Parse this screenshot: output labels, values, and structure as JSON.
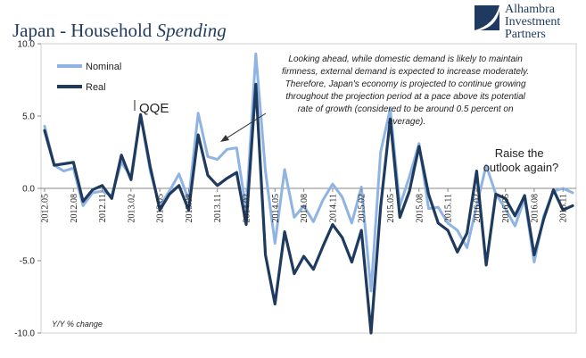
{
  "header": {
    "title_main": "Japan - Household",
    "title_italic": "Spending"
  },
  "logo": {
    "line1": "Alhambra",
    "line2": "Investment",
    "line3": "Partners",
    "color": "#1f3a5f"
  },
  "chart_data": {
    "type": "line",
    "title": "Japan - Household Spending",
    "ylabel": "Y/Y % change",
    "ylim": [
      -10,
      10
    ],
    "yticks": [
      10,
      5,
      0,
      -5,
      -10
    ],
    "ytick_labels": [
      "10.0",
      "5.0",
      "0.0",
      "-5.0",
      "-10.0"
    ],
    "grid": false,
    "legend_position": "top-left",
    "x": [
      "2012.05",
      "2012.06",
      "2012.07",
      "2012.08",
      "2012.09",
      "2012.10",
      "2012.11",
      "2012.12",
      "2013.01",
      "2013.02",
      "2013.03",
      "2013.04",
      "2013.05",
      "2013.06",
      "2013.07",
      "2013.08",
      "2013.09",
      "2013.10",
      "2013.11",
      "2013.12",
      "2014.01",
      "2014.02",
      "2014.03",
      "2014.04",
      "2014.05",
      "2014.06",
      "2014.07",
      "2014.08",
      "2014.09",
      "2014.10",
      "2014.11",
      "2014.12",
      "2015.01",
      "2015.02",
      "2015.03",
      "2015.04",
      "2015.05",
      "2015.06",
      "2015.07",
      "2015.08",
      "2015.09",
      "2015.10",
      "2015.11",
      "2015.12",
      "2016.01",
      "2016.02",
      "2016.03",
      "2016.04",
      "2016.05",
      "2016.06",
      "2016.07",
      "2016.08",
      "2016.09",
      "2016.10",
      "2016.11",
      "2016.12"
    ],
    "xtick_labels": [
      "2012.05",
      "2012.08",
      "2012.11",
      "2013.02",
      "2013.05",
      "2013.08",
      "2013.11",
      "2014.02",
      "2014.05",
      "2014.08",
      "2014.11",
      "2015.02",
      "2015.05",
      "2015.08",
      "2015.11",
      "2016.02",
      "2016.05",
      "2016.08",
      "2016.11"
    ],
    "series": [
      {
        "name": "Nominal",
        "color": "#8fb4e3",
        "values": [
          4.3,
          1.6,
          1.2,
          1.4,
          -1.2,
          -0.3,
          -0.2,
          -0.5,
          1.8,
          0.8,
          5.1,
          1.2,
          -1.2,
          -0.2,
          1.0,
          -0.8,
          5.2,
          2.2,
          2.0,
          2.7,
          2.8,
          -1.5,
          9.3,
          1.2,
          -3.8,
          1.3,
          -2.0,
          -1.2,
          -2.3,
          -0.8,
          0.3,
          -0.6,
          -2.4,
          0.1,
          -7.1,
          2.5,
          5.5,
          -1.2,
          0.8,
          3.1,
          -1.4,
          -1.3,
          -2.4,
          -2.9,
          -4.1,
          -1.2,
          1.6,
          -0.4,
          -1.4,
          -2.6,
          -0.7,
          -5.1,
          -1.9,
          -0.2,
          0.0,
          -0.3
        ]
      },
      {
        "name": "Real",
        "color": "#1f3a5f",
        "values": [
          4.0,
          1.6,
          1.7,
          1.8,
          -0.9,
          -0.1,
          0.2,
          -0.7,
          2.3,
          0.6,
          5.1,
          1.5,
          -1.5,
          -0.4,
          0.2,
          -1.5,
          3.7,
          0.9,
          0.2,
          0.7,
          1.1,
          -2.5,
          7.2,
          -4.6,
          -8.0,
          -3.0,
          -5.9,
          -4.7,
          -5.6,
          -4.0,
          -2.5,
          -3.4,
          -5.1,
          -2.9,
          -10.0,
          -1.3,
          4.8,
          -2.0,
          -0.2,
          2.9,
          -0.4,
          -2.4,
          -2.9,
          -4.4,
          -3.1,
          1.2,
          -5.3,
          -0.4,
          -0.7,
          -1.9,
          -0.5,
          -4.6,
          -2.1,
          -0.1,
          -1.5,
          -1.2
        ]
      }
    ],
    "annotations": [
      {
        "text": "QQE",
        "at_x": "2013.03"
      },
      {
        "lines": [
          "Looking ahead, while domestic demand is likely to maintain",
          "firmness, external demand is expected to increase moderately.",
          "Therefore, Japan's economy is projected to continue growing",
          "throughout the projection period at a pace above its potential",
          "rate of growth (considered to be around 0.5 percent on",
          "average)."
        ],
        "at_x": "2013.11"
      },
      {
        "lines": [
          "Raise the",
          "outlook again?"
        ]
      }
    ]
  }
}
